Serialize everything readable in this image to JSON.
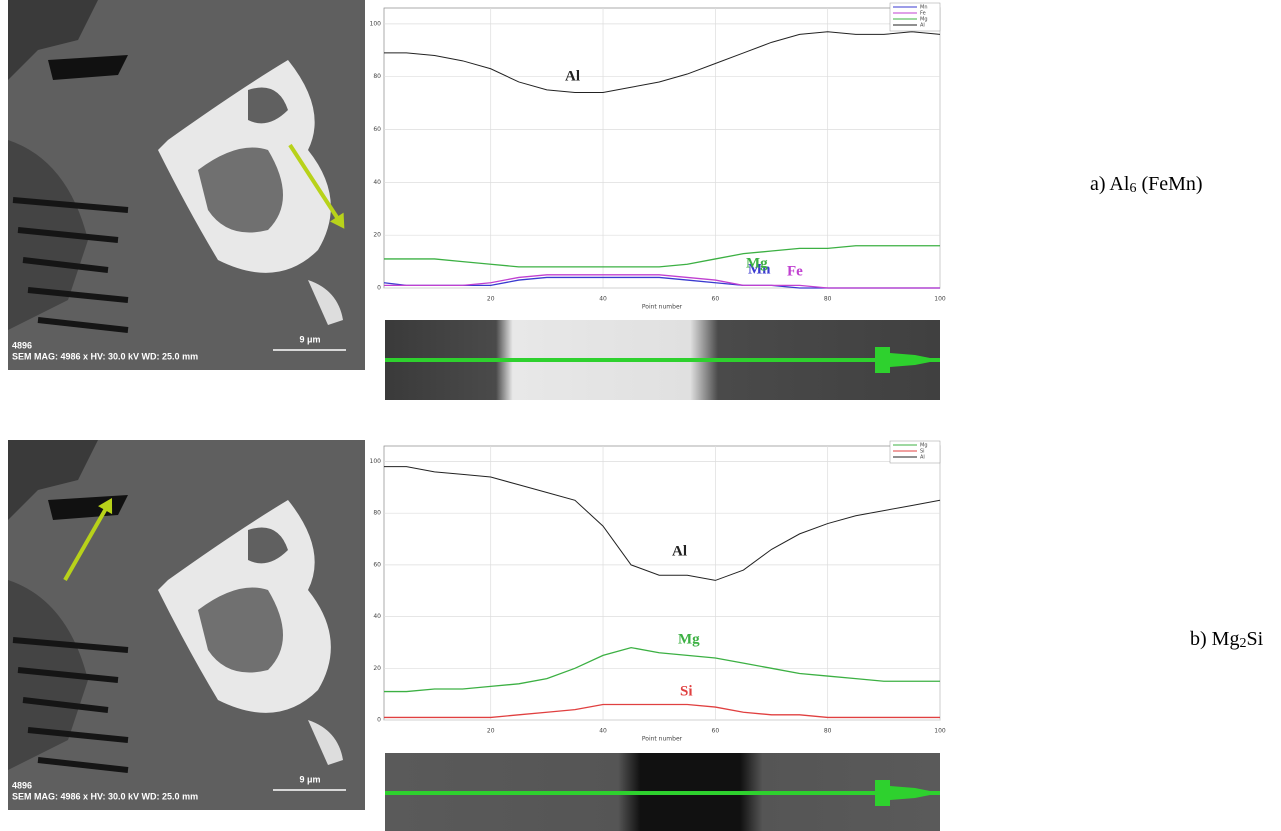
{
  "chart_data": [
    {
      "type": "line",
      "x_label": "Point number",
      "x": [
        1,
        5,
        10,
        15,
        20,
        25,
        30,
        35,
        40,
        45,
        50,
        55,
        60,
        65,
        70,
        75,
        80,
        85,
        90,
        95,
        100
      ],
      "series": [
        {
          "name": "Mn",
          "color": "#3a3ad0",
          "values": [
            2,
            1,
            1,
            1,
            1,
            3,
            4,
            4,
            4,
            4,
            4,
            3,
            2,
            1,
            1,
            0,
            0,
            0,
            0,
            0,
            0
          ]
        },
        {
          "name": "Fe",
          "color": "#c040d0",
          "values": [
            1,
            1,
            1,
            1,
            2,
            4,
            5,
            5,
            5,
            5,
            5,
            4,
            3,
            1,
            1,
            1,
            0,
            0,
            0,
            0,
            0
          ]
        },
        {
          "name": "Mg",
          "color": "#3cb043",
          "values": [
            11,
            11,
            11,
            10,
            9,
            8,
            8,
            8,
            8,
            8,
            8,
            9,
            11,
            13,
            14,
            15,
            15,
            16,
            16,
            16,
            16
          ]
        },
        {
          "name": "Al",
          "color": "#222222",
          "values": [
            89,
            89,
            88,
            86,
            83,
            78,
            75,
            74,
            74,
            76,
            78,
            81,
            85,
            89,
            93,
            96,
            97,
            96,
            96,
            97,
            96
          ]
        }
      ],
      "xlim": [
        1,
        100
      ],
      "xticks": [
        20,
        40,
        60,
        80,
        100
      ],
      "ylim": [
        0,
        106
      ],
      "yticks": [
        0,
        20,
        40,
        60,
        80,
        100
      ],
      "grid": true,
      "legend": "top-right"
    },
    {
      "type": "line",
      "x_label": "Point number",
      "x": [
        1,
        5,
        10,
        15,
        20,
        25,
        30,
        35,
        40,
        45,
        50,
        55,
        60,
        65,
        70,
        75,
        80,
        85,
        90,
        95,
        100
      ],
      "series": [
        {
          "name": "Mg",
          "color": "#3cb043",
          "values": [
            11,
            11,
            12,
            12,
            13,
            14,
            16,
            20,
            25,
            28,
            26,
            25,
            24,
            22,
            20,
            18,
            17,
            16,
            15,
            15,
            15
          ]
        },
        {
          "name": "Si",
          "color": "#e04040",
          "values": [
            1,
            1,
            1,
            1,
            1,
            2,
            3,
            4,
            6,
            6,
            6,
            6,
            5,
            3,
            2,
            2,
            1,
            1,
            1,
            1,
            1
          ]
        },
        {
          "name": "Al",
          "color": "#222222",
          "values": [
            98,
            98,
            96,
            95,
            94,
            91,
            88,
            85,
            75,
            60,
            56,
            56,
            54,
            58,
            66,
            72,
            76,
            79,
            81,
            83,
            85
          ]
        }
      ],
      "xlim": [
        1,
        100
      ],
      "xticks": [
        20,
        40,
        60,
        80,
        100
      ],
      "ylim": [
        0,
        106
      ],
      "yticks": [
        0,
        20,
        40,
        60,
        80,
        100
      ],
      "grid": true,
      "legend": "top-right"
    }
  ],
  "panels": [
    {
      "label": [
        "a) Al",
        "6",
        " (FeMn)"
      ],
      "sem": {
        "number": "4896",
        "caption": "SEM MAG: 4986 x HV: 30.0 kV WD: 25.0 mm",
        "scale": "9 μm"
      }
    },
    {
      "label": [
        "b) Mg",
        "2",
        "Si"
      ],
      "sem": {
        "number": "4896",
        "caption": "SEM MAG: 4986 x HV: 30.0 kV WD: 25.0 mm",
        "scale": "9 μm"
      }
    }
  ]
}
